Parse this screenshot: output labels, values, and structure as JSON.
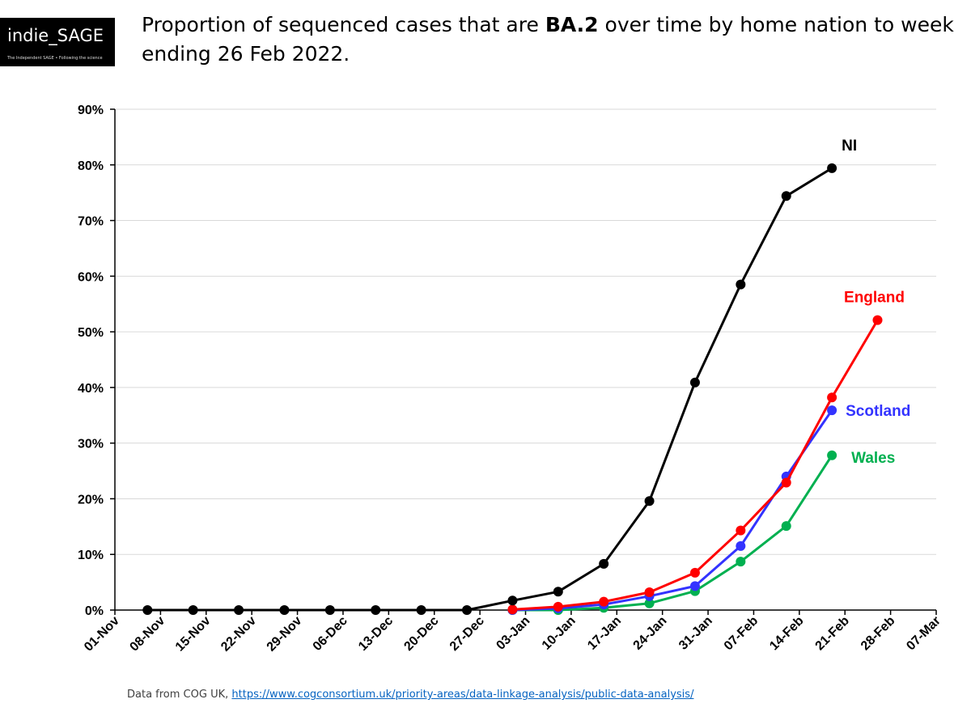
{
  "logo": {
    "text": "indie_SAGE",
    "tagline": "The Independent SAGE • Following the science"
  },
  "title": {
    "before": "Proportion of sequenced cases that are ",
    "bold": "BA.2",
    "after": " over time by home nation to week ending 26 Feb 2022."
  },
  "source": {
    "prefix": "Data from COG UK, ",
    "link": "https://www.cogconsortium.uk/priority-areas/data-linkage-analysis/public-data-analysis/"
  },
  "chart_data": {
    "type": "line",
    "x_axis": {
      "type": "date",
      "ticks": [
        "01-Nov",
        "08-Nov",
        "15-Nov",
        "22-Nov",
        "29-Nov",
        "06-Dec",
        "13-Dec",
        "20-Dec",
        "27-Dec",
        "03-Jan",
        "10-Jan",
        "17-Jan",
        "24-Jan",
        "31-Jan",
        "07-Feb",
        "14-Feb",
        "21-Feb",
        "28-Feb",
        "07-Mar"
      ],
      "range": [
        "2021-11-01",
        "2022-03-07"
      ]
    },
    "y_axis": {
      "ticks": [
        "0%",
        "10%",
        "20%",
        "30%",
        "40%",
        "50%",
        "60%",
        "70%",
        "80%",
        "90%"
      ],
      "range": [
        0,
        90
      ],
      "unit": "%"
    },
    "grid": "horizontal",
    "series": [
      {
        "name": "NI",
        "color": "#000000",
        "points": [
          {
            "x": "2021-11-06",
            "y": 0
          },
          {
            "x": "2021-11-13",
            "y": 0
          },
          {
            "x": "2021-11-20",
            "y": 0
          },
          {
            "x": "2021-11-27",
            "y": 0
          },
          {
            "x": "2021-12-04",
            "y": 0
          },
          {
            "x": "2021-12-11",
            "y": 0
          },
          {
            "x": "2021-12-18",
            "y": 0
          },
          {
            "x": "2021-12-25",
            "y": 0
          },
          {
            "x": "2022-01-01",
            "y": 1.7
          },
          {
            "x": "2022-01-08",
            "y": 3.3
          },
          {
            "x": "2022-01-15",
            "y": 8.3
          },
          {
            "x": "2022-01-22",
            "y": 19.6
          },
          {
            "x": "2022-01-29",
            "y": 40.9
          },
          {
            "x": "2022-02-05",
            "y": 58.5
          },
          {
            "x": "2022-02-12",
            "y": 74.4
          },
          {
            "x": "2022-02-19",
            "y": 79.4
          }
        ]
      },
      {
        "name": "England",
        "color": "#ff0000",
        "points": [
          {
            "x": "2022-01-01",
            "y": 0.1
          },
          {
            "x": "2022-01-08",
            "y": 0.6
          },
          {
            "x": "2022-01-15",
            "y": 1.5
          },
          {
            "x": "2022-01-22",
            "y": 3.2
          },
          {
            "x": "2022-01-29",
            "y": 6.7
          },
          {
            "x": "2022-02-05",
            "y": 14.3
          },
          {
            "x": "2022-02-12",
            "y": 22.9
          },
          {
            "x": "2022-02-19",
            "y": 38.2
          },
          {
            "x": "2022-02-26",
            "y": 52.1
          }
        ]
      },
      {
        "name": "Scotland",
        "color": "#3333ff",
        "points": [
          {
            "x": "2022-01-01",
            "y": 0
          },
          {
            "x": "2022-01-08",
            "y": 0.3
          },
          {
            "x": "2022-01-15",
            "y": 1.0
          },
          {
            "x": "2022-01-22",
            "y": 2.5
          },
          {
            "x": "2022-01-29",
            "y": 4.3
          },
          {
            "x": "2022-02-05",
            "y": 11.5
          },
          {
            "x": "2022-02-12",
            "y": 24.0
          },
          {
            "x": "2022-02-19",
            "y": 35.9
          }
        ]
      },
      {
        "name": "Wales",
        "color": "#00b050",
        "points": [
          {
            "x": "2022-01-01",
            "y": 0
          },
          {
            "x": "2022-01-08",
            "y": 0
          },
          {
            "x": "2022-01-15",
            "y": 0.4
          },
          {
            "x": "2022-01-22",
            "y": 1.2
          },
          {
            "x": "2022-01-29",
            "y": 3.4
          },
          {
            "x": "2022-02-05",
            "y": 8.7
          },
          {
            "x": "2022-02-12",
            "y": 15.1
          },
          {
            "x": "2022-02-19",
            "y": 27.8
          }
        ]
      }
    ]
  }
}
